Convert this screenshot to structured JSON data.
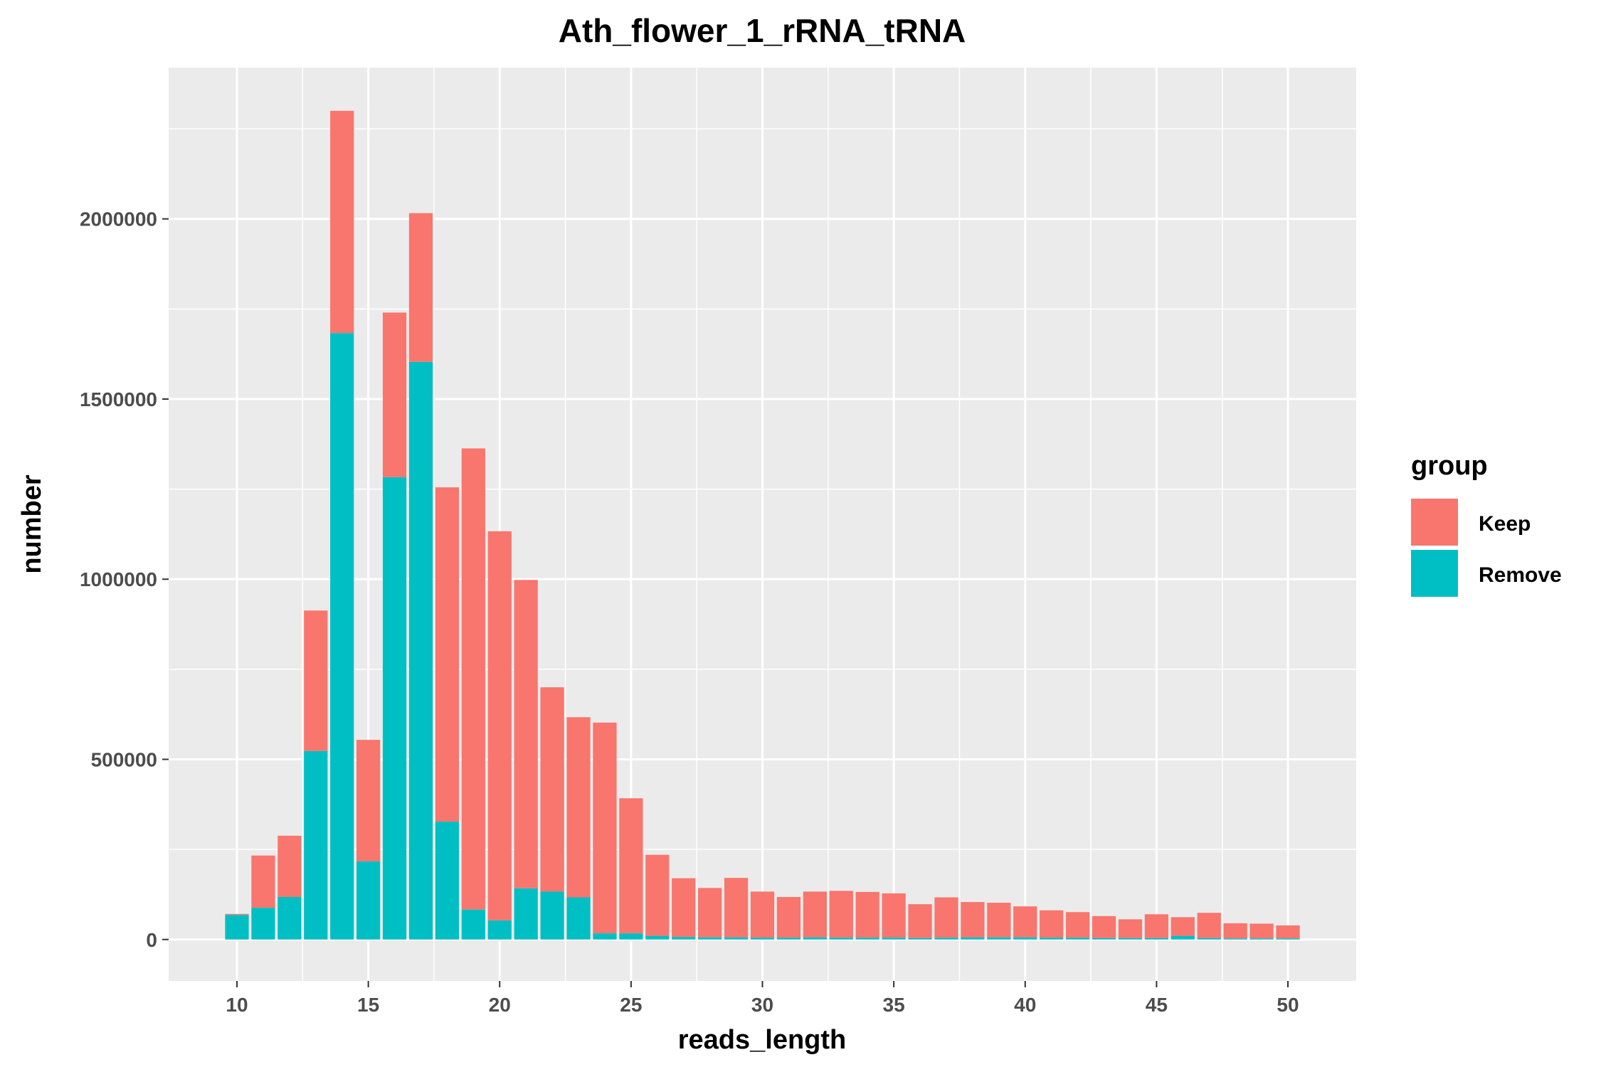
{
  "chart_data": {
    "type": "bar",
    "stacked": true,
    "title": "Ath_flower_1_rRNA_tRNA",
    "xlabel": "reads_length",
    "ylabel": "number",
    "xlim": [
      7.4,
      52.6
    ],
    "ylim": [
      -115000,
      2420000
    ],
    "x_ticks": [
      10,
      15,
      20,
      25,
      30,
      35,
      40,
      45,
      50
    ],
    "y_ticks": [
      0,
      500000,
      1000000,
      1500000,
      2000000
    ],
    "y_tick_labels": [
      "0",
      "500000",
      "1000000",
      "1500000",
      "2000000"
    ],
    "x_tick_labels": [
      "10",
      "15",
      "20",
      "25",
      "30",
      "35",
      "40",
      "45",
      "50"
    ],
    "grid": true,
    "background": "#ebebeb",
    "legend": {
      "title": "group",
      "position": "right",
      "entries": [
        {
          "label": "Keep",
          "color": "#f8766d"
        },
        {
          "label": "Remove",
          "color": "#00bfc4"
        }
      ]
    },
    "x": [
      10,
      11,
      12,
      13,
      14,
      15,
      16,
      17,
      18,
      19,
      20,
      21,
      22,
      23,
      24,
      25,
      26,
      27,
      28,
      29,
      30,
      31,
      32,
      33,
      34,
      35,
      36,
      37,
      38,
      39,
      40,
      41,
      42,
      43,
      44,
      45,
      46,
      47,
      48,
      49,
      50
    ],
    "series": [
      {
        "name": "Remove",
        "color": "#00bfc4",
        "values": [
          68000,
          88000,
          118000,
          523000,
          1683000,
          217000,
          1283000,
          1603000,
          327000,
          83000,
          53000,
          142000,
          133000,
          117000,
          17000,
          17000,
          10000,
          7000,
          6000,
          6000,
          5000,
          5000,
          6000,
          5000,
          5000,
          5000,
          4000,
          5000,
          6000,
          6000,
          6000,
          5000,
          5000,
          4000,
          4000,
          4000,
          10000,
          4000,
          3000,
          3000,
          3000
        ]
      },
      {
        "name": "Keep",
        "color": "#f8766d",
        "values": [
          3000,
          145000,
          170000,
          390000,
          617000,
          337000,
          457000,
          413000,
          928000,
          1280000,
          1080000,
          856000,
          567000,
          500000,
          585000,
          375000,
          225000,
          163000,
          137000,
          165000,
          128000,
          113000,
          127000,
          130000,
          127000,
          123000,
          94000,
          112000,
          98000,
          96000,
          86000,
          76000,
          71000,
          61000,
          52000,
          66000,
          52000,
          70000,
          42000,
          41000,
          36000
        ]
      }
    ]
  }
}
